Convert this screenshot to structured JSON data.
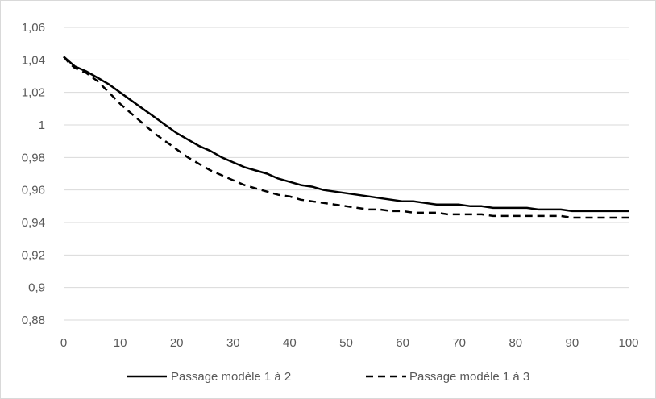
{
  "chart_data": {
    "type": "line",
    "title": "",
    "xlabel": "",
    "ylabel": "",
    "xlim": [
      0,
      100
    ],
    "ylim": [
      0.88,
      1.06
    ],
    "x_ticks": [
      0,
      10,
      20,
      30,
      40,
      50,
      60,
      70,
      80,
      90,
      100
    ],
    "x_tick_labels": [
      "0",
      "10",
      "20",
      "30",
      "40",
      "50",
      "60",
      "70",
      "80",
      "90",
      "100"
    ],
    "y_ticks": [
      0.88,
      0.9,
      0.92,
      0.94,
      0.96,
      0.98,
      1.0,
      1.02,
      1.04,
      1.06
    ],
    "y_tick_labels": [
      "0,88",
      "0,9",
      "0,92",
      "0,94",
      "0,96",
      "0,98",
      "1",
      "1,02",
      "1,04",
      "1,06"
    ],
    "grid": true,
    "legend_position": "bottom",
    "colors": {
      "line": "#000000",
      "grid": "#d9d9d9",
      "text": "#595959"
    },
    "series": [
      {
        "name": "Passage modèle 1 à 2",
        "style": "solid",
        "x": [
          0,
          1,
          2,
          4,
          6,
          8,
          10,
          12,
          14,
          16,
          18,
          20,
          22,
          24,
          26,
          28,
          30,
          32,
          34,
          36,
          38,
          40,
          42,
          44,
          46,
          48,
          50,
          52,
          54,
          56,
          58,
          60,
          62,
          64,
          66,
          68,
          70,
          72,
          74,
          76,
          78,
          80,
          82,
          84,
          86,
          88,
          90,
          92,
          94,
          96,
          98,
          100
        ],
        "y": [
          1.042,
          1.039,
          1.036,
          1.033,
          1.029,
          1.025,
          1.02,
          1.015,
          1.01,
          1.005,
          1.0,
          0.995,
          0.991,
          0.987,
          0.984,
          0.98,
          0.977,
          0.974,
          0.972,
          0.97,
          0.967,
          0.965,
          0.963,
          0.962,
          0.96,
          0.959,
          0.958,
          0.957,
          0.956,
          0.955,
          0.954,
          0.953,
          0.953,
          0.952,
          0.951,
          0.951,
          0.951,
          0.95,
          0.95,
          0.949,
          0.949,
          0.949,
          0.949,
          0.948,
          0.948,
          0.948,
          0.947,
          0.947,
          0.947,
          0.947,
          0.947,
          0.947
        ]
      },
      {
        "name": "Passage modèle 1 à 3",
        "style": "dashed",
        "x": [
          0,
          1,
          2,
          4,
          6,
          8,
          10,
          12,
          14,
          16,
          18,
          20,
          22,
          24,
          26,
          28,
          30,
          32,
          34,
          36,
          38,
          40,
          42,
          44,
          46,
          48,
          50,
          52,
          54,
          56,
          58,
          60,
          62,
          64,
          66,
          68,
          70,
          72,
          74,
          76,
          78,
          80,
          82,
          84,
          86,
          88,
          90,
          92,
          94,
          96,
          98,
          100
        ],
        "y": [
          1.042,
          1.038,
          1.035,
          1.032,
          1.027,
          1.02,
          1.013,
          1.007,
          1.001,
          0.995,
          0.99,
          0.985,
          0.98,
          0.976,
          0.972,
          0.969,
          0.966,
          0.963,
          0.961,
          0.959,
          0.957,
          0.956,
          0.954,
          0.953,
          0.952,
          0.951,
          0.95,
          0.949,
          0.948,
          0.948,
          0.947,
          0.947,
          0.946,
          0.946,
          0.946,
          0.945,
          0.945,
          0.945,
          0.945,
          0.944,
          0.944,
          0.944,
          0.944,
          0.944,
          0.944,
          0.944,
          0.943,
          0.943,
          0.943,
          0.943,
          0.943,
          0.943
        ]
      }
    ]
  }
}
